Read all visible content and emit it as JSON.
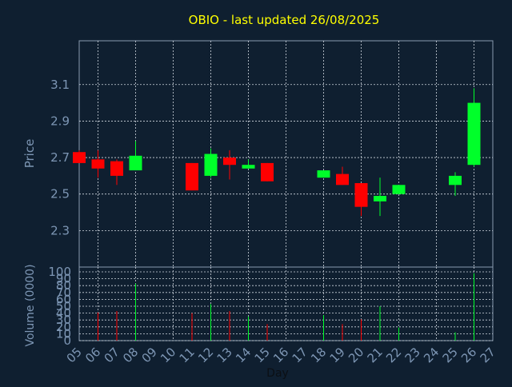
{
  "chart_data": {
    "type": "candlestick",
    "title": "OBIO - last updated 26/08/2025",
    "xlabel": "Day",
    "ylabel": "Price",
    "volume_label": "Volume (0000)",
    "x_ticks": [
      "05",
      "06",
      "07",
      "08",
      "09",
      "10",
      "11",
      "12",
      "13",
      "14",
      "15",
      "16",
      "17",
      "18",
      "19",
      "20",
      "21",
      "22",
      "23",
      "24",
      "25",
      "26",
      "27"
    ],
    "price_axis": {
      "ticks": [
        "2.3",
        "2.5",
        "2.7",
        "2.9",
        "3.1"
      ]
    },
    "volume_axis": {
      "ticks": [
        "0",
        "10",
        "20",
        "30",
        "40",
        "50",
        "60",
        "70",
        "80",
        "90",
        "100"
      ],
      "ylim": [
        0,
        100
      ]
    },
    "grid": true,
    "colors": {
      "background": "#0f1f30",
      "up": "#00ff2a",
      "down": "#ff0000",
      "title": "#ffff00",
      "axis_text": "#7d96b4",
      "frame": "#8a9bb0",
      "grid": "#d0d8e0"
    },
    "candles": [
      {
        "day": "05",
        "open": 2.73,
        "high": 2.74,
        "low": 2.67,
        "close": 2.67
      },
      {
        "day": "06",
        "open": 2.69,
        "high": 2.74,
        "low": 2.59,
        "close": 2.64
      },
      {
        "day": "07",
        "open": 2.68,
        "high": 2.69,
        "low": 2.55,
        "close": 2.6
      },
      {
        "day": "08",
        "open": 2.63,
        "high": 2.79,
        "low": 2.63,
        "close": 2.71
      },
      {
        "day": "11",
        "open": 2.67,
        "high": 2.67,
        "low": 2.52,
        "close": 2.52
      },
      {
        "day": "12",
        "open": 2.6,
        "high": 2.75,
        "low": 2.59,
        "close": 2.72
      },
      {
        "day": "13",
        "open": 2.7,
        "high": 2.74,
        "low": 2.58,
        "close": 2.66
      },
      {
        "day": "14",
        "open": 2.64,
        "high": 2.69,
        "low": 2.64,
        "close": 2.66
      },
      {
        "day": "15",
        "open": 2.67,
        "high": 2.67,
        "low": 2.57,
        "close": 2.57
      },
      {
        "day": "18",
        "open": 2.59,
        "high": 2.63,
        "low": 2.59,
        "close": 2.63
      },
      {
        "day": "19",
        "open": 2.61,
        "high": 2.65,
        "low": 2.55,
        "close": 2.55
      },
      {
        "day": "20",
        "open": 2.56,
        "high": 2.56,
        "low": 2.38,
        "close": 2.43
      },
      {
        "day": "21",
        "open": 2.46,
        "high": 2.59,
        "low": 2.38,
        "close": 2.49
      },
      {
        "day": "22",
        "open": 2.5,
        "high": 2.55,
        "low": 2.5,
        "close": 2.55
      },
      {
        "day": "25",
        "open": 2.55,
        "high": 2.62,
        "low": 2.49,
        "close": 2.6
      },
      {
        "day": "26",
        "open": 2.66,
        "high": 3.08,
        "low": 2.65,
        "close": 3.0
      }
    ],
    "volumes": [
      {
        "day": "06",
        "value": 41,
        "dir": "down"
      },
      {
        "day": "07",
        "value": 43,
        "dir": "down"
      },
      {
        "day": "08",
        "value": 83,
        "dir": "up"
      },
      {
        "day": "11",
        "value": 40,
        "dir": "down"
      },
      {
        "day": "12",
        "value": 53,
        "dir": "up"
      },
      {
        "day": "13",
        "value": 43,
        "dir": "down"
      },
      {
        "day": "14",
        "value": 35,
        "dir": "up"
      },
      {
        "day": "15",
        "value": 24,
        "dir": "down"
      },
      {
        "day": "18",
        "value": 37,
        "dir": "up"
      },
      {
        "day": "19",
        "value": 24,
        "dir": "down"
      },
      {
        "day": "20",
        "value": 31,
        "dir": "down"
      },
      {
        "day": "21",
        "value": 50,
        "dir": "up"
      },
      {
        "day": "22",
        "value": 19,
        "dir": "up"
      },
      {
        "day": "25",
        "value": 12,
        "dir": "up"
      },
      {
        "day": "26",
        "value": 98,
        "dir": "up"
      }
    ]
  }
}
